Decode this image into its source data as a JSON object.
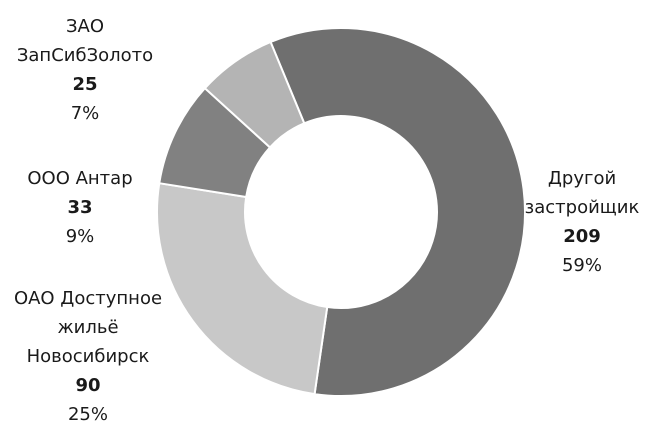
{
  "chart_data": {
    "type": "pie",
    "donut": true,
    "title": "",
    "slices": [
      {
        "name": "Другой застройщик",
        "lines": [
          "Другой",
          "застройщик"
        ],
        "value": 209,
        "value_label": "209",
        "percent_label": "59%",
        "color": "#6f6f6f"
      },
      {
        "name": "ОАО Доступное жильё Новосибирск",
        "lines": [
          "ОАО Доступное",
          "жильё",
          "Новосибирск"
        ],
        "value": 90,
        "value_label": "90",
        "percent_label": "25%",
        "color": "#c8c8c8"
      },
      {
        "name": "ООО Антар",
        "lines": [
          "ООО Антар"
        ],
        "value": 33,
        "value_label": "33",
        "percent_label": "9%",
        "color": "#818181"
      },
      {
        "name": "ЗАО ЗапСибЗолото",
        "lines": [
          "ЗАО",
          "ЗапСибЗолото"
        ],
        "value": 25,
        "value_label": "25",
        "percent_label": "7%",
        "color": "#b4b4b4"
      }
    ],
    "start_angle_deg": -112.5,
    "direction": "clockwise"
  }
}
